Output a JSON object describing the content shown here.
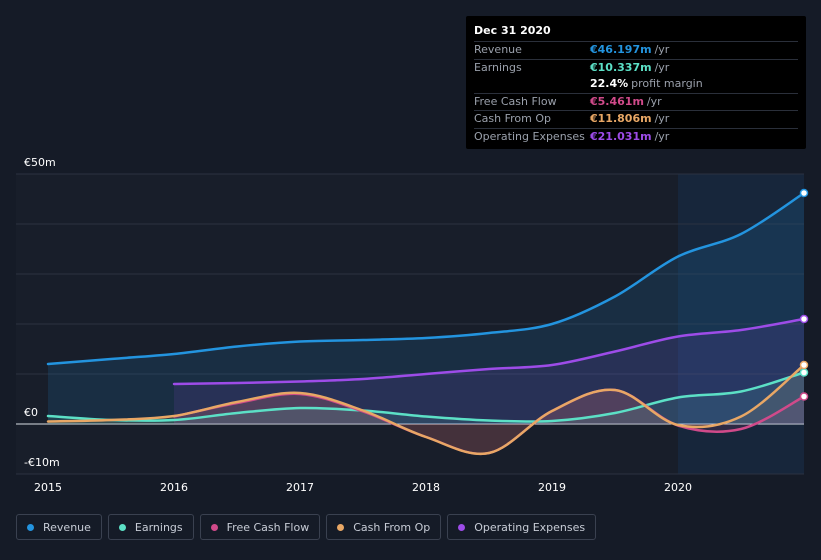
{
  "tooltip": {
    "date": "Dec 31 2020",
    "rows": [
      {
        "label": "Revenue",
        "value": "€46.197m",
        "unit": "/yr",
        "color": "#2394df"
      },
      {
        "label": "Earnings",
        "value": "€10.337m",
        "unit": "/yr",
        "color": "#5ce0c6"
      },
      {
        "label": "",
        "value": "22.4%",
        "unit": "profit margin",
        "color": "#ffffff"
      },
      {
        "label": "Free Cash Flow",
        "value": "€5.461m",
        "unit": "/yr",
        "color": "#d04a8a"
      },
      {
        "label": "Cash From Op",
        "value": "€11.806m",
        "unit": "/yr",
        "color": "#e8a765"
      },
      {
        "label": "Operating Expenses",
        "value": "€21.031m",
        "unit": "/yr",
        "color": "#9d4ce8"
      }
    ]
  },
  "legend": [
    {
      "label": "Revenue",
      "color": "#2394df"
    },
    {
      "label": "Earnings",
      "color": "#5ce0c6"
    },
    {
      "label": "Free Cash Flow",
      "color": "#d04a8a"
    },
    {
      "label": "Cash From Op",
      "color": "#e8a765"
    },
    {
      "label": "Operating Expenses",
      "color": "#9d4ce8"
    }
  ],
  "chart_data": {
    "type": "line",
    "y_tick_labels": [
      "€50m",
      "€0",
      "-€10m"
    ],
    "x_tick_labels": [
      "2015",
      "2016",
      "2017",
      "2018",
      "2019",
      "2020"
    ],
    "ylim": [
      -10,
      50
    ],
    "xlim": [
      2015.0,
      2021.0
    ],
    "highlight_start": 2020.0,
    "series": [
      {
        "name": "Revenue",
        "color": "#2394df",
        "x": [
          2015.0,
          2015.5,
          2016.0,
          2016.5,
          2017.0,
          2017.5,
          2018.0,
          2018.5,
          2019.0,
          2019.5,
          2020.0,
          2020.5,
          2021.0
        ],
        "values": [
          12.0,
          13.0,
          14.0,
          15.5,
          16.5,
          16.8,
          17.2,
          18.2,
          20.0,
          25.5,
          33.5,
          38.0,
          46.2
        ]
      },
      {
        "name": "Earnings",
        "color": "#5ce0c6",
        "x": [
          2015.0,
          2015.5,
          2016.0,
          2016.5,
          2017.0,
          2017.5,
          2018.0,
          2018.5,
          2019.0,
          2019.5,
          2020.0,
          2020.5,
          2021.0
        ],
        "values": [
          1.6,
          0.8,
          0.8,
          2.2,
          3.2,
          2.7,
          1.5,
          0.7,
          0.6,
          2.2,
          5.3,
          6.5,
          10.3
        ]
      },
      {
        "name": "Free Cash Flow",
        "color": "#d04a8a",
        "x": [
          2016.0,
          2016.5,
          2017.0,
          2017.5,
          2018.0,
          2018.5,
          2019.0,
          2019.5,
          2020.0,
          2020.5,
          2021.0
        ],
        "values": [
          1.5,
          4.2,
          6.0,
          2.5,
          -2.6,
          -5.8,
          2.6,
          6.8,
          -0.3,
          -1.0,
          5.5
        ]
      },
      {
        "name": "Cash From Op",
        "color": "#e8a765",
        "x": [
          2015.0,
          2015.5,
          2016.0,
          2016.5,
          2017.0,
          2017.5,
          2018.0,
          2018.5,
          2019.0,
          2019.5,
          2020.0,
          2020.5,
          2021.0
        ],
        "values": [
          0.5,
          0.8,
          1.6,
          4.4,
          6.2,
          2.7,
          -2.6,
          -5.8,
          2.6,
          6.8,
          -0.2,
          1.5,
          11.8
        ]
      },
      {
        "name": "Operating Expenses",
        "color": "#9d4ce8",
        "x": [
          2016.0,
          2016.5,
          2017.0,
          2017.5,
          2018.0,
          2018.5,
          2019.0,
          2019.5,
          2020.0,
          2020.5,
          2021.0
        ],
        "values": [
          8.0,
          8.2,
          8.5,
          9.0,
          10.0,
          11.0,
          11.8,
          14.5,
          17.5,
          18.8,
          21.0
        ]
      }
    ]
  }
}
